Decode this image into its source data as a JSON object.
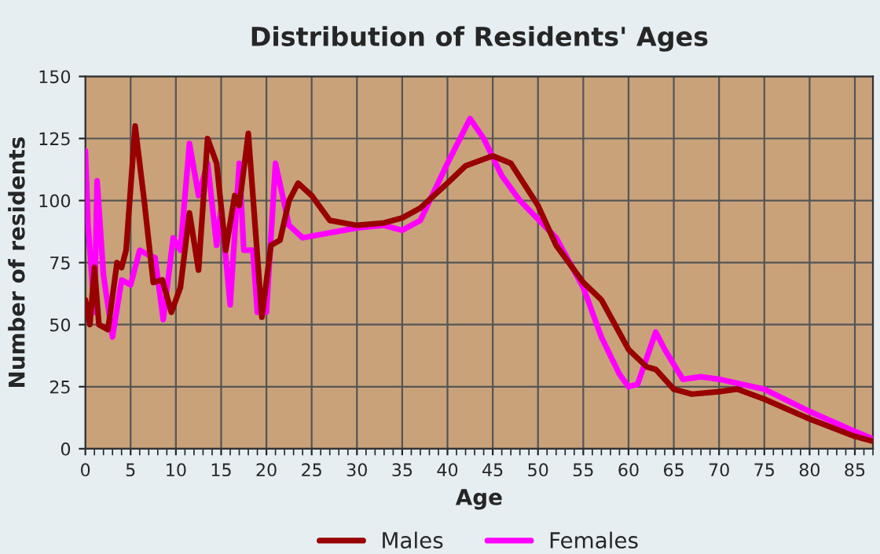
{
  "chart_data": {
    "type": "line",
    "title": "Distribution of Residents' Ages",
    "xlabel": "Age",
    "ylabel": "Number of residents",
    "xlim": [
      0,
      87
    ],
    "xticks": [
      0,
      5,
      10,
      15,
      20,
      25,
      30,
      35,
      40,
      45,
      50,
      55,
      60,
      65,
      70,
      75,
      80,
      85
    ],
    "ylim": [
      0,
      150
    ],
    "yticks": [
      0,
      25,
      50,
      75,
      100,
      125,
      150
    ],
    "grid": true,
    "legend": "bottom",
    "marker": "none",
    "line_style": "solid",
    "series": [
      {
        "name": "Males",
        "color": "#990000",
        "x": [
          0,
          0.5,
          1,
          1.5,
          2.5,
          3.5,
          4,
          4.5,
          5.5,
          6.5,
          7.5,
          8.5,
          9.5,
          10.5,
          11.5,
          12.5,
          13.5,
          14.5,
          15.5,
          16.5,
          17,
          18,
          19.5,
          20.5,
          21.5,
          22.5,
          23.5,
          25,
          27,
          30,
          33,
          35,
          37,
          40,
          42,
          45,
          47,
          50,
          52,
          55,
          57,
          60,
          62,
          63,
          65,
          67,
          70,
          72,
          75,
          80,
          85,
          87
        ],
        "values": [
          60,
          50,
          73,
          50,
          48,
          75,
          73,
          80,
          130,
          100,
          67,
          68,
          55,
          65,
          95,
          72,
          125,
          115,
          80,
          102,
          98,
          127,
          53,
          82,
          84,
          100,
          107,
          102,
          92,
          90,
          91,
          93,
          97,
          107,
          114,
          118,
          115,
          98,
          82,
          67,
          60,
          40,
          33,
          32,
          24,
          22,
          23,
          24,
          20,
          12,
          5,
          3
        ]
      },
      {
        "name": "Females",
        "color": "#ff00ff",
        "x": [
          0,
          0.3,
          1,
          1.3,
          2,
          3,
          4,
          5,
          6,
          7,
          7.7,
          8.6,
          9.7,
          10.5,
          11.5,
          12.5,
          13.5,
          14.5,
          15,
          16,
          17,
          17.5,
          18.5,
          19,
          20,
          21,
          22.5,
          24,
          30,
          33,
          35,
          37,
          40,
          42.5,
          44,
          46,
          48,
          52,
          55,
          57,
          59,
          60,
          61,
          63,
          64,
          66,
          68,
          70,
          75,
          80,
          85,
          87
        ],
        "values": [
          120,
          90,
          55,
          108,
          70,
          45,
          68,
          66,
          80,
          78,
          77,
          52,
          85,
          80,
          123,
          102,
          115,
          82,
          97,
          58,
          115,
          80,
          80,
          55,
          55,
          115,
          90,
          85,
          89,
          90,
          88,
          92,
          115,
          133,
          125,
          110,
          100,
          85,
          65,
          45,
          30,
          25,
          26,
          47,
          40,
          28,
          29,
          28,
          24,
          15,
          7,
          4
        ]
      }
    ]
  }
}
